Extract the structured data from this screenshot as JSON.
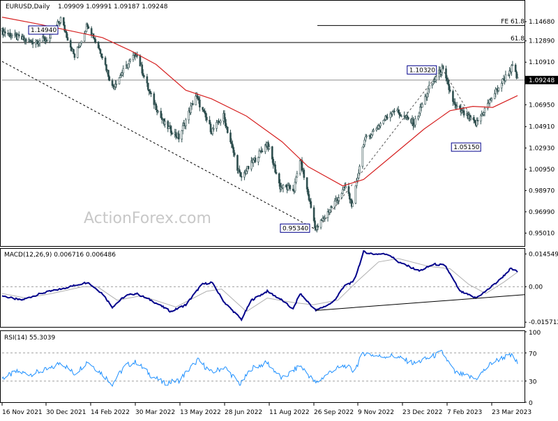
{
  "header": {
    "symbol_label": "EURUSD,Daily",
    "ohlc_text": "1.09909 1.09991 1.09187 1.09248"
  },
  "watermark": "ActionForex.com",
  "colors": {
    "candle": "#2f4f4f",
    "ma": "#d62020",
    "macd": "#00008b",
    "signal": "#b0b0b0",
    "rsi": "#1e90ff",
    "grid_dash": "#a0a0a0",
    "hline": "#000000"
  },
  "chart_data": [
    {
      "type": "candlestick",
      "panel": "price",
      "ylim": [
        0.94,
        1.165
      ],
      "y_ticks": [
        "1.14680",
        "1.12890",
        "1.10910",
        "1.06950",
        "1.04910",
        "1.02930",
        "1.00950",
        "0.98970",
        "0.96990",
        "0.95010"
      ],
      "y_tick_values": [
        1.1468,
        1.1289,
        1.1091,
        1.0695,
        1.0491,
        1.0293,
        1.0095,
        0.9897,
        0.9699,
        0.9501
      ],
      "current_price_label": "1.09248",
      "current_price": 1.09248,
      "x_labels": [
        "16 Nov 2021",
        "30 Dec 2021",
        "14 Feb 2022",
        "30 Mar 2022",
        "13 May 2022",
        "28 Jun 2022",
        "11 Aug 2022",
        "26 Sep 2022",
        "9 Nov 2022",
        "23 Dec 2022",
        "7 Feb 2023",
        "23 Mar 2023"
      ],
      "key_points": [
        {
          "date": "2021-11-16",
          "price": 1.138
        },
        {
          "date": "2021-12-01",
          "price": 1.132
        },
        {
          "date": "2021-12-15",
          "price": 1.128
        },
        {
          "date": "2022-01-03",
          "price": 1.131
        },
        {
          "date": "2022-01-14",
          "price": 1.1494
        },
        {
          "date": "2022-01-28",
          "price": 1.114
        },
        {
          "date": "2022-02-10",
          "price": 1.145
        },
        {
          "date": "2022-02-25",
          "price": 1.115
        },
        {
          "date": "2022-03-07",
          "price": 1.086
        },
        {
          "date": "2022-03-31",
          "price": 1.118
        },
        {
          "date": "2022-04-14",
          "price": 1.079
        },
        {
          "date": "2022-04-28",
          "price": 1.052
        },
        {
          "date": "2022-05-13",
          "price": 1.039
        },
        {
          "date": "2022-05-30",
          "price": 1.078
        },
        {
          "date": "2022-06-15",
          "price": 1.045
        },
        {
          "date": "2022-06-27",
          "price": 1.059
        },
        {
          "date": "2022-07-14",
          "price": 1.001
        },
        {
          "date": "2022-08-10",
          "price": 1.034
        },
        {
          "date": "2022-08-23",
          "price": 0.993
        },
        {
          "date": "2022-09-06",
          "price": 0.991
        },
        {
          "date": "2022-09-12",
          "price": 1.019
        },
        {
          "date": "2022-09-28",
          "price": 0.9534
        },
        {
          "date": "2022-10-14",
          "price": 0.975
        },
        {
          "date": "2022-10-28",
          "price": 0.993
        },
        {
          "date": "2022-11-04",
          "price": 0.975
        },
        {
          "date": "2022-11-15",
          "price": 1.035
        },
        {
          "date": "2022-12-15",
          "price": 1.065
        },
        {
          "date": "2023-01-05",
          "price": 1.052
        },
        {
          "date": "2023-01-20",
          "price": 1.085
        },
        {
          "date": "2023-02-02",
          "price": 1.1032
        },
        {
          "date": "2023-02-15",
          "price": 1.068
        },
        {
          "date": "2023-03-08",
          "price": 1.0515
        },
        {
          "date": "2023-03-24",
          "price": 1.076
        },
        {
          "date": "2023-04-05",
          "price": 1.093
        },
        {
          "date": "2023-04-14",
          "price": 1.105
        },
        {
          "date": "2023-04-19",
          "price": 1.0925
        }
      ],
      "moving_average": [
        {
          "date": "2021-11-16",
          "price": 1.151
        },
        {
          "date": "2021-12-20",
          "price": 1.145
        },
        {
          "date": "2022-01-25",
          "price": 1.138
        },
        {
          "date": "2022-02-25",
          "price": 1.132
        },
        {
          "date": "2022-03-25",
          "price": 1.12
        },
        {
          "date": "2022-04-20",
          "price": 1.107
        },
        {
          "date": "2022-05-20",
          "price": 1.083
        },
        {
          "date": "2022-06-15",
          "price": 1.075
        },
        {
          "date": "2022-07-20",
          "price": 1.059
        },
        {
          "date": "2022-08-25",
          "price": 1.035
        },
        {
          "date": "2022-09-20",
          "price": 1.012
        },
        {
          "date": "2022-10-25",
          "price": 0.994
        },
        {
          "date": "2022-11-15",
          "price": 1.0
        },
        {
          "date": "2022-12-15",
          "price": 1.023
        },
        {
          "date": "2023-01-15",
          "price": 1.047
        },
        {
          "date": "2023-02-10",
          "price": 1.064
        },
        {
          "date": "2023-03-05",
          "price": 1.068
        },
        {
          "date": "2023-03-25",
          "price": 1.067
        },
        {
          "date": "2023-04-19",
          "price": 1.078
        }
      ],
      "annotations": [
        {
          "label": "1.14940",
          "date": "2022-01-14",
          "price": 1.1494
        },
        {
          "label": "0.95340",
          "date": "2022-09-28",
          "price": 0.9534
        },
        {
          "label": "1.10320",
          "date": "2023-02-02",
          "price": 1.1032
        },
        {
          "label": "1.05150",
          "date": "2023-03-08",
          "price": 1.0515
        }
      ],
      "fib_lines": [
        {
          "label": "FE 61.8",
          "price": 1.1432
        },
        {
          "label": "61.8",
          "price": 1.1274
        }
      ]
    },
    {
      "type": "line",
      "panel": "macd",
      "title": "MACD(12,26,9) 0.006716 0.006486",
      "ylim": [
        -0.0175,
        0.0165
      ],
      "y_ticks": [
        "0.014549",
        "0.00",
        "-0.015712"
      ],
      "y_tick_values": [
        0.014549,
        0.0,
        -0.015712
      ],
      "series": [
        {
          "role": "main",
          "points": [
            {
              "date": "2021-11-16",
              "value": -0.004
            },
            {
              "date": "2021-12-05",
              "value": -0.006
            },
            {
              "date": "2021-12-25",
              "value": -0.003
            },
            {
              "date": "2022-01-14",
              "value": -0.001
            },
            {
              "date": "2022-02-01",
              "value": 0.001
            },
            {
              "date": "2022-02-10",
              "value": 0.002
            },
            {
              "date": "2022-02-25",
              "value": -0.003
            },
            {
              "date": "2022-03-07",
              "value": -0.009
            },
            {
              "date": "2022-03-20",
              "value": -0.004
            },
            {
              "date": "2022-03-31",
              "value": -0.003
            },
            {
              "date": "2022-04-15",
              "value": -0.006
            },
            {
              "date": "2022-05-05",
              "value": -0.011
            },
            {
              "date": "2022-05-20",
              "value": -0.008
            },
            {
              "date": "2022-06-05",
              "value": 0.001
            },
            {
              "date": "2022-06-15",
              "value": 0.002
            },
            {
              "date": "2022-06-28",
              "value": -0.007
            },
            {
              "date": "2022-07-15",
              "value": -0.0145
            },
            {
              "date": "2022-07-25",
              "value": -0.006
            },
            {
              "date": "2022-08-10",
              "value": -0.002
            },
            {
              "date": "2022-08-25",
              "value": -0.006
            },
            {
              "date": "2022-09-05",
              "value": -0.01
            },
            {
              "date": "2022-09-12",
              "value": -0.003
            },
            {
              "date": "2022-09-28",
              "value": -0.0105
            },
            {
              "date": "2022-10-15",
              "value": -0.007
            },
            {
              "date": "2022-10-28",
              "value": 0.001
            },
            {
              "date": "2022-11-05",
              "value": 0.002
            },
            {
              "date": "2022-11-15",
              "value": 0.0155
            },
            {
              "date": "2022-11-25",
              "value": 0.0145
            },
            {
              "date": "2022-12-10",
              "value": 0.0145
            },
            {
              "date": "2022-12-20",
              "value": 0.011
            },
            {
              "date": "2023-01-10",
              "value": 0.007
            },
            {
              "date": "2023-01-25",
              "value": 0.01
            },
            {
              "date": "2023-02-05",
              "value": 0.0095
            },
            {
              "date": "2023-02-20",
              "value": -0.002
            },
            {
              "date": "2023-03-08",
              "value": -0.005
            },
            {
              "date": "2023-03-18",
              "value": -0.002
            },
            {
              "date": "2023-04-01",
              "value": 0.003
            },
            {
              "date": "2023-04-12",
              "value": 0.008
            },
            {
              "date": "2023-04-19",
              "value": 0.0067
            }
          ]
        },
        {
          "role": "signal",
          "points": [
            {
              "date": "2021-11-16",
              "value": -0.003
            },
            {
              "date": "2021-12-10",
              "value": -0.005
            },
            {
              "date": "2022-01-05",
              "value": -0.003
            },
            {
              "date": "2022-02-05",
              "value": 0.0
            },
            {
              "date": "2022-02-20",
              "value": 0.0
            },
            {
              "date": "2022-03-12",
              "value": -0.006
            },
            {
              "date": "2022-04-05",
              "value": -0.004
            },
            {
              "date": "2022-05-10",
              "value": -0.009
            },
            {
              "date": "2022-06-10",
              "value": -0.002
            },
            {
              "date": "2022-06-25",
              "value": -0.001
            },
            {
              "date": "2022-07-20",
              "value": -0.011
            },
            {
              "date": "2022-08-10",
              "value": -0.005
            },
            {
              "date": "2022-09-05",
              "value": -0.007
            },
            {
              "date": "2022-09-25",
              "value": -0.008
            },
            {
              "date": "2022-10-20",
              "value": -0.006
            },
            {
              "date": "2022-11-10",
              "value": 0.003
            },
            {
              "date": "2022-11-30",
              "value": 0.011
            },
            {
              "date": "2022-12-20",
              "value": 0.0125
            },
            {
              "date": "2023-01-20",
              "value": 0.009
            },
            {
              "date": "2023-02-10",
              "value": 0.008
            },
            {
              "date": "2023-03-01",
              "value": 0.001
            },
            {
              "date": "2023-03-18",
              "value": -0.003
            },
            {
              "date": "2023-04-05",
              "value": 0.002
            },
            {
              "date": "2023-04-19",
              "value": 0.0065
            }
          ]
        }
      ],
      "trendline": [
        {
          "date": "2022-09-28",
          "value": -0.0105
        },
        {
          "date": "2023-04-22",
          "value": -0.0035
        }
      ]
    },
    {
      "type": "line",
      "panel": "rsi",
      "title": "RSI(14) 55.3039",
      "ylim": [
        0,
        100
      ],
      "y_ticks": [
        "100",
        "70",
        "30",
        "0"
      ],
      "y_tick_values": [
        100,
        70,
        30,
        0
      ],
      "levels": [
        70,
        30
      ],
      "points": [
        {
          "date": "2021-11-16",
          "value": 34
        },
        {
          "date": "2021-12-01",
          "value": 43
        },
        {
          "date": "2021-12-15",
          "value": 40
        },
        {
          "date": "2022-01-05",
          "value": 48
        },
        {
          "date": "2022-01-14",
          "value": 57
        },
        {
          "date": "2022-01-28",
          "value": 40
        },
        {
          "date": "2022-02-10",
          "value": 58
        },
        {
          "date": "2022-02-25",
          "value": 40
        },
        {
          "date": "2022-03-07",
          "value": 26
        },
        {
          "date": "2022-03-20",
          "value": 52
        },
        {
          "date": "2022-03-31",
          "value": 57
        },
        {
          "date": "2022-04-15",
          "value": 38
        },
        {
          "date": "2022-04-28",
          "value": 27
        },
        {
          "date": "2022-05-13",
          "value": 31
        },
        {
          "date": "2022-06-01",
          "value": 60
        },
        {
          "date": "2022-06-15",
          "value": 42
        },
        {
          "date": "2022-06-28",
          "value": 50
        },
        {
          "date": "2022-07-14",
          "value": 25
        },
        {
          "date": "2022-07-25",
          "value": 48
        },
        {
          "date": "2022-08-10",
          "value": 56
        },
        {
          "date": "2022-08-25",
          "value": 33
        },
        {
          "date": "2022-09-12",
          "value": 52
        },
        {
          "date": "2022-09-28",
          "value": 27
        },
        {
          "date": "2022-10-14",
          "value": 45
        },
        {
          "date": "2022-10-28",
          "value": 52
        },
        {
          "date": "2022-11-05",
          "value": 44
        },
        {
          "date": "2022-11-15",
          "value": 70
        },
        {
          "date": "2022-12-01",
          "value": 65
        },
        {
          "date": "2022-12-15",
          "value": 66
        },
        {
          "date": "2023-01-05",
          "value": 55
        },
        {
          "date": "2023-01-20",
          "value": 63
        },
        {
          "date": "2023-02-02",
          "value": 71
        },
        {
          "date": "2023-02-15",
          "value": 42
        },
        {
          "date": "2023-03-08",
          "value": 33
        },
        {
          "date": "2023-03-24",
          "value": 56
        },
        {
          "date": "2023-04-05",
          "value": 64
        },
        {
          "date": "2023-04-14",
          "value": 66
        },
        {
          "date": "2023-04-19",
          "value": 55
        }
      ]
    }
  ]
}
